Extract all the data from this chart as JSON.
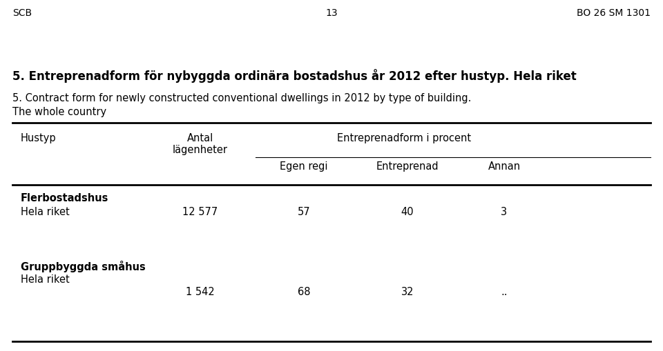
{
  "header_left": "SCB",
  "header_center": "13",
  "header_right": "BO 26 SM 1301",
  "title_bold": "5. Entreprenadform för nybyggda ordinära bostadshus år 2012 efter hustyp. Hela riket",
  "subtitle_line1": "5. Contract form for newly constructed conventional dwellings in 2012 by type of building.",
  "subtitle_line2": "The whole country",
  "col_header1": "Hustyp",
  "col_header2_line1": "Antal",
  "col_header2_line2": "lägenheter",
  "col_header3": "Entreprenadform i procent",
  "col_header3a": "Egen regi",
  "col_header3b": "Entreprenad",
  "col_header3c": "Annan",
  "section1_bold": "Flerbostadshus",
  "section1_row1_label": "Hela riket",
  "section1_row1_col2": "12 577",
  "section1_row1_col3": "57",
  "section1_row1_col4": "40",
  "section1_row1_col5": "3",
  "section2_bold": "Gruppbyggda småhus",
  "section2_row1_label": "Hela riket",
  "section2_row1_col2": "1 542",
  "section2_row1_col3": "68",
  "section2_row1_col4": "32",
  "section2_row1_col5": "..",
  "bg_color": "#ffffff",
  "text_color": "#000000",
  "font_size_header": 10,
  "font_size_title": 12,
  "font_size_subtitle": 10.5,
  "font_size_table": 10.5
}
